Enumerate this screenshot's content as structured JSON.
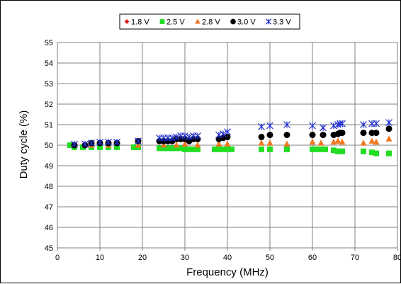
{
  "chart_data": {
    "type": "scatter",
    "xlabel": "Frequency (MHz)",
    "ylabel": "Duty cycle (%)",
    "xlim": [
      0,
      80
    ],
    "ylim": [
      45,
      55
    ],
    "xticks": [
      "0",
      "10",
      "20",
      "30",
      "40",
      "50",
      "60",
      "70",
      "80"
    ],
    "yticks": [
      "45",
      "46",
      "47",
      "48",
      "49",
      "50",
      "51",
      "52",
      "53",
      "54",
      "55"
    ],
    "grid": true,
    "legend_position": "top-center",
    "series": [
      {
        "name": "1.8 V",
        "symbol": "diamond",
        "color": "#e01818",
        "x": [
          3.5,
          4,
          6.5,
          8,
          10,
          12,
          14
        ],
        "y": [
          50.0,
          50.0,
          50.0,
          50.0,
          50.0,
          50.0,
          49.9
        ]
      },
      {
        "name": "2.5 V",
        "symbol": "square",
        "color": "#22dd22",
        "x": [
          3,
          4,
          6,
          8,
          10,
          12,
          14,
          18,
          19,
          24,
          25,
          26,
          27,
          28,
          29,
          30,
          31,
          32,
          33,
          37,
          38,
          39,
          40,
          41,
          48,
          50,
          54,
          60,
          61,
          62,
          63,
          65,
          66,
          66.5,
          67,
          72,
          74,
          75,
          78
        ],
        "y": [
          50.0,
          49.9,
          49.9,
          49.9,
          49.9,
          49.9,
          49.9,
          49.9,
          49.9,
          49.85,
          49.85,
          49.85,
          49.85,
          49.85,
          49.85,
          49.8,
          49.8,
          49.8,
          49.8,
          49.8,
          49.8,
          49.8,
          49.8,
          49.8,
          49.8,
          49.8,
          49.8,
          49.8,
          49.8,
          49.8,
          49.8,
          49.75,
          49.7,
          49.7,
          49.7,
          49.7,
          49.65,
          49.6,
          49.6
        ]
      },
      {
        "name": "2.8 V",
        "symbol": "triangle",
        "color": "#f07820",
        "x": [
          4,
          8,
          12,
          19,
          25,
          28,
          30,
          33,
          38,
          40,
          48,
          50,
          54,
          60,
          62,
          65,
          66,
          67,
          72,
          74,
          75,
          78
        ],
        "y": [
          50.0,
          50.0,
          50.0,
          50.0,
          50.0,
          50.0,
          50.05,
          50.0,
          50.05,
          50.05,
          50.1,
          50.1,
          50.05,
          50.15,
          50.1,
          50.15,
          50.2,
          50.15,
          50.1,
          50.2,
          50.15,
          50.3
        ]
      },
      {
        "name": "3.0 V",
        "symbol": "circle",
        "color": "#000000",
        "x": [
          4,
          6.5,
          8,
          10,
          12,
          14,
          19,
          24,
          25,
          26,
          27,
          28,
          29,
          30,
          31,
          32,
          33,
          38,
          39,
          40,
          48,
          50,
          54,
          60,
          62.5,
          65,
          66,
          66.5,
          67,
          72,
          74,
          75,
          78
        ],
        "y": [
          50.0,
          50.0,
          50.1,
          50.1,
          50.1,
          50.1,
          50.2,
          50.2,
          50.2,
          50.2,
          50.2,
          50.3,
          50.3,
          50.3,
          50.2,
          50.3,
          50.3,
          50.3,
          50.35,
          50.4,
          50.4,
          50.5,
          50.5,
          50.5,
          50.5,
          50.5,
          50.55,
          50.6,
          50.6,
          50.6,
          50.6,
          50.6,
          50.8
        ]
      },
      {
        "name": "3.3 V",
        "symbol": "tee-star",
        "color": "#2030d0",
        "x": [
          4,
          6.5,
          8,
          10,
          12,
          14,
          19,
          24,
          25,
          26,
          27,
          28,
          29,
          30,
          31,
          32,
          33,
          38,
          39,
          40,
          48,
          50,
          54,
          60,
          62.5,
          65,
          66,
          66.5,
          67,
          72,
          74,
          75,
          78
        ],
        "y": [
          50.05,
          50.05,
          50.1,
          50.15,
          50.15,
          50.15,
          50.2,
          50.35,
          50.35,
          50.35,
          50.35,
          50.4,
          50.45,
          50.45,
          50.4,
          50.45,
          50.45,
          50.5,
          50.55,
          50.65,
          50.9,
          50.95,
          51.0,
          50.95,
          50.85,
          50.95,
          51.0,
          51.05,
          51.05,
          51.0,
          51.05,
          51.05,
          51.1
        ]
      }
    ]
  }
}
